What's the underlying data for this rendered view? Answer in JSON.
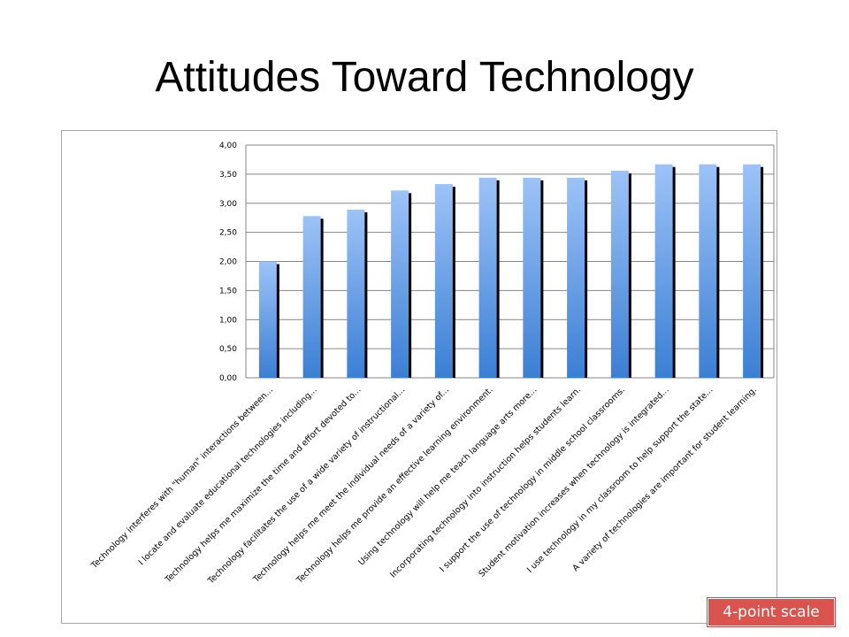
{
  "slide": {
    "title": "Attitudes Toward Technology",
    "badge": "4-point scale"
  },
  "colors": {
    "bar_top": "#9dc3f7",
    "bar_bottom": "#3b7fd4",
    "bar_shadow": "#000000",
    "gridline": "#868686",
    "badge": "#d9534f"
  },
  "chart_data": {
    "type": "bar",
    "title": "",
    "xlabel": "",
    "ylabel": "",
    "ylim": [
      0,
      4
    ],
    "yticks": [
      "0,00",
      "0,50",
      "1,00",
      "1,50",
      "2,00",
      "2,50",
      "3,00",
      "3,50",
      "4,00"
    ],
    "grid": true,
    "legend": "none",
    "categories": [
      "Technology interferes with \"human\" interactions between...",
      "I locate and evaluate educational technologies including...",
      "Technology helps me maximize the time and effort devoted to...",
      "Technology facilitates the use of a wide variety of instructional...",
      "Technology helps me meet the individual needs of a variety of...",
      "Technology helps me provide an effective learning environment.",
      "Using technology will help me teach language arts more...",
      "Incorporating technology into instruction helps students learn.",
      "I support the use of technology in middle school classrooms.",
      "Student motivation increases when technology is integrated...",
      "I use technology in my classroom to help support the state...",
      "A variety of technologies are important for student learning."
    ],
    "values": [
      2.0,
      2.78,
      2.89,
      3.22,
      3.33,
      3.44,
      3.44,
      3.44,
      3.56,
      3.67,
      3.67,
      3.67
    ]
  }
}
